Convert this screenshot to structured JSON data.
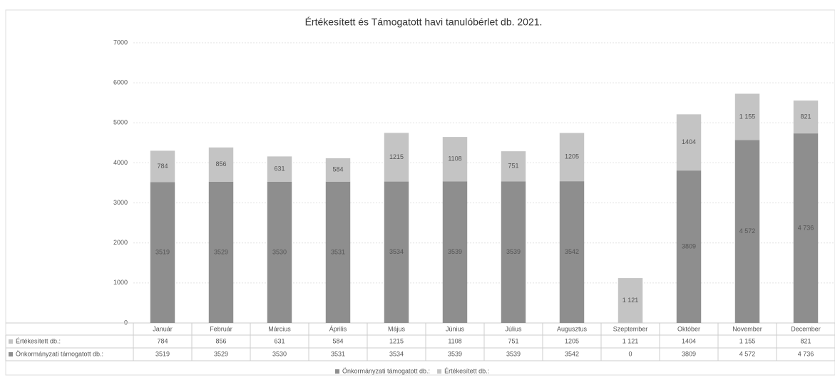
{
  "chart_data": {
    "type": "stacked-bar",
    "title": "Értékesített és Támogatott havi tanulóbérlet db. 2021.",
    "categories": [
      "Január",
      "Február",
      "Március",
      "Április",
      "Május",
      "Június",
      "Július",
      "Augusztus",
      "Szeptember",
      "Október",
      "November",
      "December"
    ],
    "series": [
      {
        "name": "Önkormányzati támogatott db.:",
        "color": "#8e8e8e",
        "values": [
          3519,
          3529,
          3530,
          3531,
          3534,
          3539,
          3539,
          3542,
          0,
          3809,
          4572,
          4736
        ],
        "value_labels": [
          "3519",
          "3529",
          "3530",
          "3531",
          "3534",
          "3539",
          "3539",
          "3542",
          "0",
          "3809",
          "4 572",
          "4 736"
        ]
      },
      {
        "name": "Értékesített db.:",
        "color": "#c4c4c4",
        "values": [
          784,
          856,
          631,
          584,
          1215,
          1108,
          751,
          1205,
          1121,
          1404,
          1155,
          821
        ],
        "value_labels": [
          "784",
          "856",
          "631",
          "584",
          "1215",
          "1108",
          "751",
          "1205",
          "1 121",
          "1404",
          "1 155",
          "821"
        ]
      }
    ],
    "ylim": [
      0,
      7000
    ],
    "yticks": [
      0,
      1000,
      2000,
      3000,
      4000,
      5000,
      6000,
      7000
    ],
    "grid": true,
    "legend": "bottom"
  }
}
